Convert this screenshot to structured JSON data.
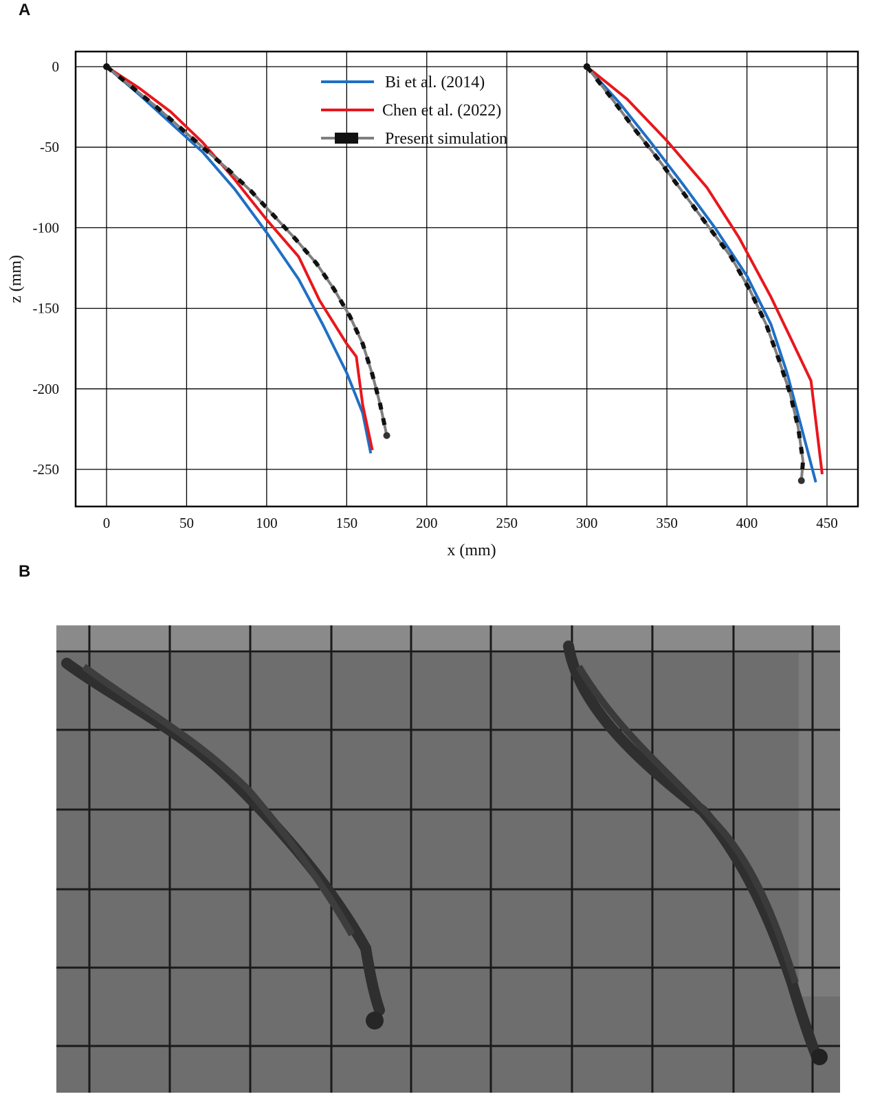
{
  "panels": {
    "a_label": "A",
    "b_label": "B"
  },
  "chart_data": {
    "type": "line",
    "title": "",
    "xlabel": "x (mm)",
    "ylabel": "z (mm)",
    "xlim": [
      -20,
      470
    ],
    "ylim": [
      -273,
      10
    ],
    "xticks": [
      0,
      50,
      100,
      150,
      200,
      250,
      300,
      350,
      400,
      450
    ],
    "yticks": [
      0,
      -50,
      -100,
      -150,
      -200,
      -250
    ],
    "grid": true,
    "legend_position": "top-center",
    "series": [
      {
        "name": "Bi et al. (2014)",
        "color": "#1f6fc4",
        "style": "solid",
        "curves": [
          [
            [
              0,
              0
            ],
            [
              20,
              -17
            ],
            [
              40,
              -35
            ],
            [
              60,
              -53
            ],
            [
              80,
              -76
            ],
            [
              100,
              -103
            ],
            [
              120,
              -132
            ],
            [
              135,
              -160
            ],
            [
              150,
              -190
            ],
            [
              160,
              -215
            ],
            [
              165,
              -240
            ]
          ],
          [
            [
              300,
              0
            ],
            [
              320,
              -22
            ],
            [
              340,
              -47
            ],
            [
              360,
              -73
            ],
            [
              380,
              -100
            ],
            [
              400,
              -130
            ],
            [
              415,
              -160
            ],
            [
              425,
              -190
            ],
            [
              433,
              -220
            ],
            [
              443,
              -258
            ]
          ]
        ]
      },
      {
        "name": "Chen et al. (2022)",
        "color": "#e8171c",
        "style": "solid",
        "curves": [
          [
            [
              0,
              0
            ],
            [
              20,
              -13
            ],
            [
              40,
              -28
            ],
            [
              60,
              -47
            ],
            [
              80,
              -70
            ],
            [
              100,
              -95
            ],
            [
              120,
              -118
            ],
            [
              133,
              -145
            ],
            [
              150,
              -172
            ],
            [
              156,
              -180
            ],
            [
              160,
              -210
            ],
            [
              166,
              -238
            ]
          ],
          [
            [
              300,
              0
            ],
            [
              325,
              -20
            ],
            [
              350,
              -46
            ],
            [
              375,
              -75
            ],
            [
              395,
              -106
            ],
            [
              415,
              -143
            ],
            [
              428,
              -170
            ],
            [
              440,
              -195
            ],
            [
              447,
              -253
            ]
          ]
        ]
      },
      {
        "name": "Present simulation",
        "color": "#7f7f7f",
        "marker_color": "#111111",
        "style": "dashed-markers",
        "curves": [
          [
            [
              0,
              0
            ],
            [
              15,
              -12
            ],
            [
              30,
              -24
            ],
            [
              45,
              -37
            ],
            [
              60,
              -50
            ],
            [
              75,
              -63
            ],
            [
              90,
              -77
            ],
            [
              104,
              -92
            ],
            [
              118,
              -107
            ],
            [
              131,
              -122
            ],
            [
              142,
              -138
            ],
            [
              152,
              -155
            ],
            [
              160,
              -172
            ],
            [
              166,
              -191
            ],
            [
              171,
              -210
            ],
            [
              175,
              -229
            ]
          ],
          [
            [
              300,
              0
            ],
            [
              315,
              -19
            ],
            [
              330,
              -39
            ],
            [
              345,
              -58
            ],
            [
              360,
              -78
            ],
            [
              375,
              -98
            ],
            [
              390,
              -118
            ],
            [
              402,
              -139
            ],
            [
              412,
              -160
            ],
            [
              420,
              -182
            ],
            [
              427,
              -203
            ],
            [
              432,
              -224
            ],
            [
              435,
              -245
            ],
            [
              434,
              -257
            ]
          ]
        ]
      }
    ]
  },
  "photo": {
    "background": "#6e6e6e",
    "grid_color": "#1a1a1a"
  }
}
